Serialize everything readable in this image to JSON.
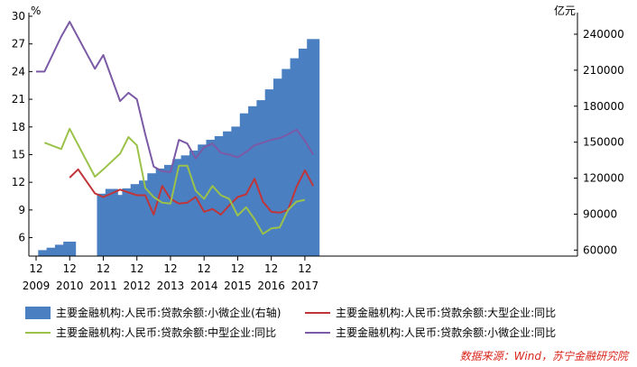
{
  "chart_data": {
    "type": "bar",
    "left_axis_unit": "%",
    "right_axis_unit": "亿元",
    "left_ylim": [
      4,
      30
    ],
    "left_ticks": [
      "6",
      "9",
      "12",
      "15",
      "18",
      "21",
      "24",
      "27",
      "30"
    ],
    "right_ylim": [
      55000,
      255000
    ],
    "right_ticks": [
      "60000",
      "90000",
      "120000",
      "150000",
      "180000",
      "210000",
      "240000"
    ],
    "x_tick_month_labels": [
      "12",
      "12",
      "12",
      "12",
      "12",
      "12",
      "12",
      "12",
      "12"
    ],
    "x_tick_year_labels": [
      "2009",
      "2010",
      "2011",
      "2012",
      "2013",
      "2014",
      "2015",
      "2016",
      "2017"
    ],
    "bar_series": {
      "name": "主要金融机构:人民币:贷款余额:小微企业(右轴)",
      "color": "#4a7fc1",
      "points": [
        {
          "q": "2010Q1",
          "v": 60000
        },
        {
          "q": "2010Q2",
          "v": 62000
        },
        {
          "q": "2010Q3",
          "v": 64500
        },
        {
          "q": "2010Q4",
          "v": 67000
        },
        {
          "q": "2011Q4",
          "v": 107000
        },
        {
          "q": "2012Q1",
          "v": 111000
        },
        {
          "q": "2012Q2",
          "v": 106000
        },
        {
          "q": "2012Q3",
          "v": 111500
        },
        {
          "q": "2012Q4",
          "v": 115000
        },
        {
          "q": "2013Q1",
          "v": 118000
        },
        {
          "q": "2013Q2",
          "v": 124000
        },
        {
          "q": "2013Q3",
          "v": 128000
        },
        {
          "q": "2013Q4",
          "v": 131000
        },
        {
          "q": "2014Q1",
          "v": 136000
        },
        {
          "q": "2014Q2",
          "v": 139000
        },
        {
          "q": "2014Q3",
          "v": 143000
        },
        {
          "q": "2014Q4",
          "v": 148000
        },
        {
          "q": "2015Q1",
          "v": 152000
        },
        {
          "q": "2015Q2",
          "v": 155000
        },
        {
          "q": "2015Q3",
          "v": 159000
        },
        {
          "q": "2015Q4",
          "v": 163000
        },
        {
          "q": "2016Q1",
          "v": 174000
        },
        {
          "q": "2016Q2",
          "v": 180000
        },
        {
          "q": "2016Q3",
          "v": 185000
        },
        {
          "q": "2016Q4",
          "v": 194000
        },
        {
          "q": "2017Q1",
          "v": 203000
        },
        {
          "q": "2017Q2",
          "v": 211000
        },
        {
          "q": "2017Q3",
          "v": 220000
        },
        {
          "q": "2017Q4",
          "v": 228000
        },
        {
          "q": "2018Q1",
          "v": 236000
        }
      ]
    },
    "line_series": [
      {
        "name": "主要金融机构:人民币:贷款余额:大型企业:同比",
        "color": "#c0353a",
        "points": [
          {
            "q": "2010Q4",
            "v": 12.5
          },
          {
            "q": "2011Q1",
            "v": 13.4
          },
          {
            "q": "2011Q3",
            "v": 10.8
          },
          {
            "q": "2011Q4",
            "v": 10.4
          },
          {
            "q": "2012Q2",
            "v": 11.2
          },
          {
            "q": "2012Q4",
            "v": 10.6
          },
          {
            "q": "2013Q1",
            "v": 10.6
          },
          {
            "q": "2013Q2",
            "v": 8.5
          },
          {
            "q": "2013Q3",
            "v": 11.6
          },
          {
            "q": "2013Q4",
            "v": 10.2
          },
          {
            "q": "2014Q1",
            "v": 9.7
          },
          {
            "q": "2014Q2",
            "v": 9.8
          },
          {
            "q": "2014Q3",
            "v": 10.4
          },
          {
            "q": "2014Q4",
            "v": 8.8
          },
          {
            "q": "2015Q1",
            "v": 9.1
          },
          {
            "q": "2015Q2",
            "v": 8.5
          },
          {
            "q": "2015Q3",
            "v": 9.5
          },
          {
            "q": "2015Q4",
            "v": 10.4
          },
          {
            "q": "2016Q1",
            "v": 10.7
          },
          {
            "q": "2016Q2",
            "v": 12.4
          },
          {
            "q": "2016Q3",
            "v": 9.9
          },
          {
            "q": "2016Q4",
            "v": 8.8
          },
          {
            "q": "2017Q1",
            "v": 8.7
          },
          {
            "q": "2017Q2",
            "v": 9.0
          },
          {
            "q": "2017Q3",
            "v": 11.5
          },
          {
            "q": "2017Q4",
            "v": 13.3
          },
          {
            "q": "2018Q1",
            "v": 11.6
          }
        ]
      },
      {
        "name": "主要金融机构:人民币:贷款余额:中型企业:同比",
        "color": "#9bc24a",
        "points": [
          {
            "q": "2010Q1",
            "v": 16.3
          },
          {
            "q": "2010Q3",
            "v": 15.6
          },
          {
            "q": "2010Q4",
            "v": 17.8
          },
          {
            "q": "2011Q3",
            "v": 12.6
          },
          {
            "q": "2011Q4",
            "v": 13.4
          },
          {
            "q": "2012Q2",
            "v": 15.1
          },
          {
            "q": "2012Q3",
            "v": 16.9
          },
          {
            "q": "2012Q4",
            "v": 16.0
          },
          {
            "q": "2013Q1",
            "v": 11.4
          },
          {
            "q": "2013Q2",
            "v": 10.4
          },
          {
            "q": "2013Q3",
            "v": 9.8
          },
          {
            "q": "2013Q4",
            "v": 9.7
          },
          {
            "q": "2014Q1",
            "v": 13.8
          },
          {
            "q": "2014Q2",
            "v": 13.8
          },
          {
            "q": "2014Q3",
            "v": 11.1
          },
          {
            "q": "2014Q4",
            "v": 10.2
          },
          {
            "q": "2015Q1",
            "v": 11.6
          },
          {
            "q": "2015Q2",
            "v": 10.6
          },
          {
            "q": "2015Q3",
            "v": 10.2
          },
          {
            "q": "2015Q4",
            "v": 8.4
          },
          {
            "q": "2016Q1",
            "v": 9.3
          },
          {
            "q": "2016Q2",
            "v": 8.0
          },
          {
            "q": "2016Q3",
            "v": 6.4
          },
          {
            "q": "2016Q4",
            "v": 7.0
          },
          {
            "q": "2017Q1",
            "v": 7.1
          },
          {
            "q": "2017Q2",
            "v": 9.0
          },
          {
            "q": "2017Q3",
            "v": 9.9
          },
          {
            "q": "2017Q4",
            "v": 10.1
          }
        ]
      },
      {
        "name": "主要金融机构:人民币:贷款余额:小微企业:同比",
        "color": "#7b5aa6",
        "points": [
          {
            "q": "2009Q4",
            "v": 24.0
          },
          {
            "q": "2010Q1",
            "v": 24.0
          },
          {
            "q": "2010Q3",
            "v": 27.8
          },
          {
            "q": "2010Q4",
            "v": 29.4
          },
          {
            "q": "2011Q3",
            "v": 24.3
          },
          {
            "q": "2011Q4",
            "v": 25.8
          },
          {
            "q": "2012Q2",
            "v": 20.8
          },
          {
            "q": "2012Q3",
            "v": 21.7
          },
          {
            "q": "2012Q4",
            "v": 21.0
          },
          {
            "q": "2013Q1",
            "v": 17.2
          },
          {
            "q": "2013Q2",
            "v": 13.7
          },
          {
            "q": "2013Q3",
            "v": 13.2
          },
          {
            "q": "2013Q4",
            "v": 13.1
          },
          {
            "q": "2014Q1",
            "v": 16.6
          },
          {
            "q": "2014Q2",
            "v": 16.2
          },
          {
            "q": "2014Q3",
            "v": 14.6
          },
          {
            "q": "2014Q4",
            "v": 15.8
          },
          {
            "q": "2015Q1",
            "v": 16.2
          },
          {
            "q": "2015Q2",
            "v": 15.2
          },
          {
            "q": "2015Q3",
            "v": 15.0
          },
          {
            "q": "2015Q4",
            "v": 14.7
          },
          {
            "q": "2016Q1",
            "v": 15.3
          },
          {
            "q": "2016Q2",
            "v": 16.0
          },
          {
            "q": "2016Q3",
            "v": 16.3
          },
          {
            "q": "2016Q4",
            "v": 16.6
          },
          {
            "q": "2017Q1",
            "v": 16.8
          },
          {
            "q": "2017Q2",
            "v": 17.2
          },
          {
            "q": "2017Q3",
            "v": 17.7
          },
          {
            "q": "2017Q4",
            "v": 16.5
          },
          {
            "q": "2018Q1",
            "v": 15.0
          }
        ]
      }
    ],
    "legend": [
      {
        "label": "主要金融机构:人民币:贷款余额:小微企业(右轴)",
        "kind": "bar",
        "color": "#4a7fc1"
      },
      {
        "label": "主要金融机构:人民币:贷款余额:大型企业:同比",
        "kind": "line",
        "color": "#c0353a"
      },
      {
        "label": "主要金融机构:人民币:贷款余额:中型企业:同比",
        "kind": "line",
        "color": "#9bc24a"
      },
      {
        "label": "主要金融机构:人民币:贷款余额:小微企业:同比",
        "kind": "line",
        "color": "#7b5aa6"
      }
    ],
    "legend_placement": "bottom",
    "grid": false,
    "source": "数据来源：Wind，苏宁金融研究院"
  }
}
